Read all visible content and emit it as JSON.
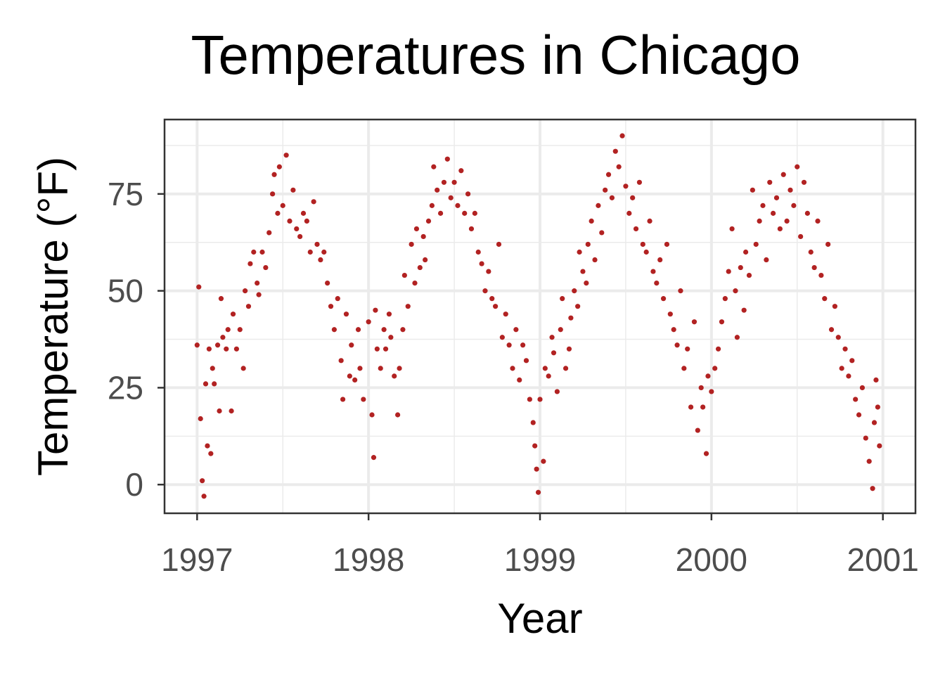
{
  "chart_data": {
    "type": "scatter",
    "title": "Temperatures in Chicago",
    "xlabel": "Year",
    "ylabel": "Temperature (°F)",
    "xlim": [
      1996.81,
      2001.19
    ],
    "ylim": [
      -7.4,
      94.2
    ],
    "x_ticks": [
      1997,
      1998,
      1999,
      2000,
      2001
    ],
    "x_tick_labels": [
      "1997",
      "1998",
      "1999",
      "2000",
      "2001"
    ],
    "y_ticks": [
      0,
      25,
      50,
      75
    ],
    "y_tick_labels": [
      "0",
      "25",
      "50",
      "75"
    ],
    "grid": true,
    "point_color": "#b22222",
    "points_by_year": [
      {
        "year": 1997,
        "fraction_temp": [
          [
            0.0,
            36
          ],
          [
            0.01,
            51
          ],
          [
            0.02,
            17
          ],
          [
            0.03,
            1
          ],
          [
            0.04,
            -3
          ],
          [
            0.05,
            26
          ],
          [
            0.06,
            10
          ],
          [
            0.07,
            35
          ],
          [
            0.08,
            8
          ],
          [
            0.09,
            30
          ],
          [
            0.1,
            26
          ],
          [
            0.12,
            36
          ],
          [
            0.13,
            19
          ],
          [
            0.14,
            48
          ],
          [
            0.15,
            38
          ],
          [
            0.17,
            35
          ],
          [
            0.18,
            40
          ],
          [
            0.2,
            19
          ],
          [
            0.21,
            44
          ],
          [
            0.23,
            35
          ],
          [
            0.25,
            40
          ],
          [
            0.27,
            30
          ],
          [
            0.28,
            50
          ],
          [
            0.3,
            46
          ],
          [
            0.31,
            57
          ],
          [
            0.33,
            60
          ],
          [
            0.35,
            52
          ],
          [
            0.36,
            49
          ],
          [
            0.38,
            60
          ],
          [
            0.4,
            56
          ],
          [
            0.42,
            65
          ],
          [
            0.44,
            75
          ],
          [
            0.45,
            80
          ],
          [
            0.47,
            70
          ],
          [
            0.48,
            82
          ],
          [
            0.5,
            72
          ],
          [
            0.52,
            85
          ],
          [
            0.54,
            68
          ],
          [
            0.56,
            76
          ],
          [
            0.58,
            66
          ],
          [
            0.6,
            64
          ],
          [
            0.62,
            70
          ],
          [
            0.64,
            68
          ],
          [
            0.66,
            60
          ],
          [
            0.68,
            73
          ],
          [
            0.7,
            62
          ],
          [
            0.72,
            58
          ],
          [
            0.74,
            60
          ],
          [
            0.76,
            52
          ],
          [
            0.78,
            46
          ],
          [
            0.8,
            40
          ],
          [
            0.82,
            48
          ],
          [
            0.84,
            32
          ],
          [
            0.85,
            22
          ],
          [
            0.87,
            44
          ],
          [
            0.89,
            28
          ],
          [
            0.9,
            36
          ],
          [
            0.92,
            27
          ],
          [
            0.94,
            40
          ],
          [
            0.95,
            30
          ],
          [
            0.97,
            22
          ]
        ]
      },
      {
        "year": 1998,
        "fraction_temp": [
          [
            0.0,
            42
          ],
          [
            0.02,
            18
          ],
          [
            0.03,
            7
          ],
          [
            0.04,
            45
          ],
          [
            0.05,
            35
          ],
          [
            0.07,
            30
          ],
          [
            0.09,
            40
          ],
          [
            0.1,
            35
          ],
          [
            0.12,
            44
          ],
          [
            0.13,
            38
          ],
          [
            0.15,
            28
          ],
          [
            0.17,
            18
          ],
          [
            0.18,
            30
          ],
          [
            0.2,
            40
          ],
          [
            0.21,
            54
          ],
          [
            0.23,
            46
          ],
          [
            0.25,
            62
          ],
          [
            0.27,
            52
          ],
          [
            0.28,
            66
          ],
          [
            0.3,
            56
          ],
          [
            0.32,
            64
          ],
          [
            0.33,
            58
          ],
          [
            0.35,
            68
          ],
          [
            0.37,
            72
          ],
          [
            0.38,
            82
          ],
          [
            0.4,
            76
          ],
          [
            0.42,
            70
          ],
          [
            0.44,
            78
          ],
          [
            0.46,
            84
          ],
          [
            0.48,
            74
          ],
          [
            0.5,
            78
          ],
          [
            0.52,
            72
          ],
          [
            0.54,
            81
          ],
          [
            0.56,
            70
          ],
          [
            0.58,
            75
          ],
          [
            0.6,
            66
          ],
          [
            0.62,
            70
          ],
          [
            0.64,
            60
          ],
          [
            0.66,
            57
          ],
          [
            0.68,
            50
          ],
          [
            0.7,
            55
          ],
          [
            0.72,
            48
          ],
          [
            0.74,
            46
          ],
          [
            0.76,
            62
          ],
          [
            0.78,
            38
          ],
          [
            0.8,
            44
          ],
          [
            0.82,
            36
          ],
          [
            0.84,
            30
          ],
          [
            0.86,
            40
          ],
          [
            0.88,
            27
          ],
          [
            0.9,
            36
          ],
          [
            0.92,
            32
          ],
          [
            0.94,
            22
          ],
          [
            0.96,
            16
          ],
          [
            0.97,
            10
          ],
          [
            0.98,
            4
          ],
          [
            0.99,
            -2
          ]
        ]
      },
      {
        "year": 1999,
        "fraction_temp": [
          [
            0.0,
            22
          ],
          [
            0.02,
            6
          ],
          [
            0.03,
            30
          ],
          [
            0.05,
            28
          ],
          [
            0.07,
            38
          ],
          [
            0.08,
            34
          ],
          [
            0.1,
            24
          ],
          [
            0.12,
            40
          ],
          [
            0.13,
            48
          ],
          [
            0.15,
            30
          ],
          [
            0.17,
            35
          ],
          [
            0.18,
            43
          ],
          [
            0.2,
            50
          ],
          [
            0.22,
            46
          ],
          [
            0.23,
            60
          ],
          [
            0.25,
            55
          ],
          [
            0.27,
            52
          ],
          [
            0.28,
            62
          ],
          [
            0.3,
            68
          ],
          [
            0.32,
            58
          ],
          [
            0.34,
            72
          ],
          [
            0.36,
            65
          ],
          [
            0.38,
            76
          ],
          [
            0.4,
            80
          ],
          [
            0.42,
            74
          ],
          [
            0.44,
            86
          ],
          [
            0.46,
            82
          ],
          [
            0.48,
            90
          ],
          [
            0.5,
            77
          ],
          [
            0.52,
            70
          ],
          [
            0.54,
            74
          ],
          [
            0.56,
            66
          ],
          [
            0.58,
            78
          ],
          [
            0.6,
            62
          ],
          [
            0.62,
            60
          ],
          [
            0.64,
            68
          ],
          [
            0.66,
            55
          ],
          [
            0.68,
            52
          ],
          [
            0.7,
            58
          ],
          [
            0.72,
            48
          ],
          [
            0.74,
            62
          ],
          [
            0.76,
            44
          ],
          [
            0.78,
            40
          ],
          [
            0.8,
            36
          ],
          [
            0.82,
            50
          ],
          [
            0.84,
            30
          ],
          [
            0.86,
            35
          ],
          [
            0.88,
            20
          ],
          [
            0.9,
            42
          ],
          [
            0.92,
            14
          ],
          [
            0.94,
            25
          ],
          [
            0.95,
            20
          ],
          [
            0.97,
            8
          ],
          [
            0.98,
            28
          ]
        ]
      },
      {
        "year": 2000,
        "fraction_temp": [
          [
            0.0,
            24
          ],
          [
            0.02,
            30
          ],
          [
            0.04,
            35
          ],
          [
            0.06,
            42
          ],
          [
            0.08,
            48
          ],
          [
            0.1,
            55
          ],
          [
            0.12,
            66
          ],
          [
            0.14,
            50
          ],
          [
            0.15,
            38
          ],
          [
            0.17,
            56
          ],
          [
            0.19,
            45
          ],
          [
            0.2,
            60
          ],
          [
            0.22,
            54
          ],
          [
            0.24,
            76
          ],
          [
            0.26,
            62
          ],
          [
            0.28,
            68
          ],
          [
            0.3,
            72
          ],
          [
            0.32,
            58
          ],
          [
            0.34,
            78
          ],
          [
            0.36,
            70
          ],
          [
            0.38,
            74
          ],
          [
            0.4,
            66
          ],
          [
            0.42,
            80
          ],
          [
            0.44,
            68
          ],
          [
            0.46,
            76
          ],
          [
            0.48,
            72
          ],
          [
            0.5,
            82
          ],
          [
            0.52,
            64
          ],
          [
            0.54,
            78
          ],
          [
            0.56,
            70
          ],
          [
            0.58,
            60
          ],
          [
            0.6,
            56
          ],
          [
            0.62,
            68
          ],
          [
            0.64,
            54
          ],
          [
            0.66,
            48
          ],
          [
            0.68,
            62
          ],
          [
            0.7,
            40
          ],
          [
            0.72,
            46
          ],
          [
            0.74,
            38
          ],
          [
            0.76,
            30
          ],
          [
            0.78,
            35
          ],
          [
            0.8,
            28
          ],
          [
            0.82,
            32
          ],
          [
            0.84,
            22
          ],
          [
            0.86,
            18
          ],
          [
            0.88,
            25
          ],
          [
            0.9,
            12
          ],
          [
            0.92,
            6
          ],
          [
            0.94,
            -1
          ],
          [
            0.95,
            16
          ],
          [
            0.96,
            27
          ],
          [
            0.97,
            20
          ],
          [
            0.98,
            10
          ]
        ]
      }
    ]
  }
}
